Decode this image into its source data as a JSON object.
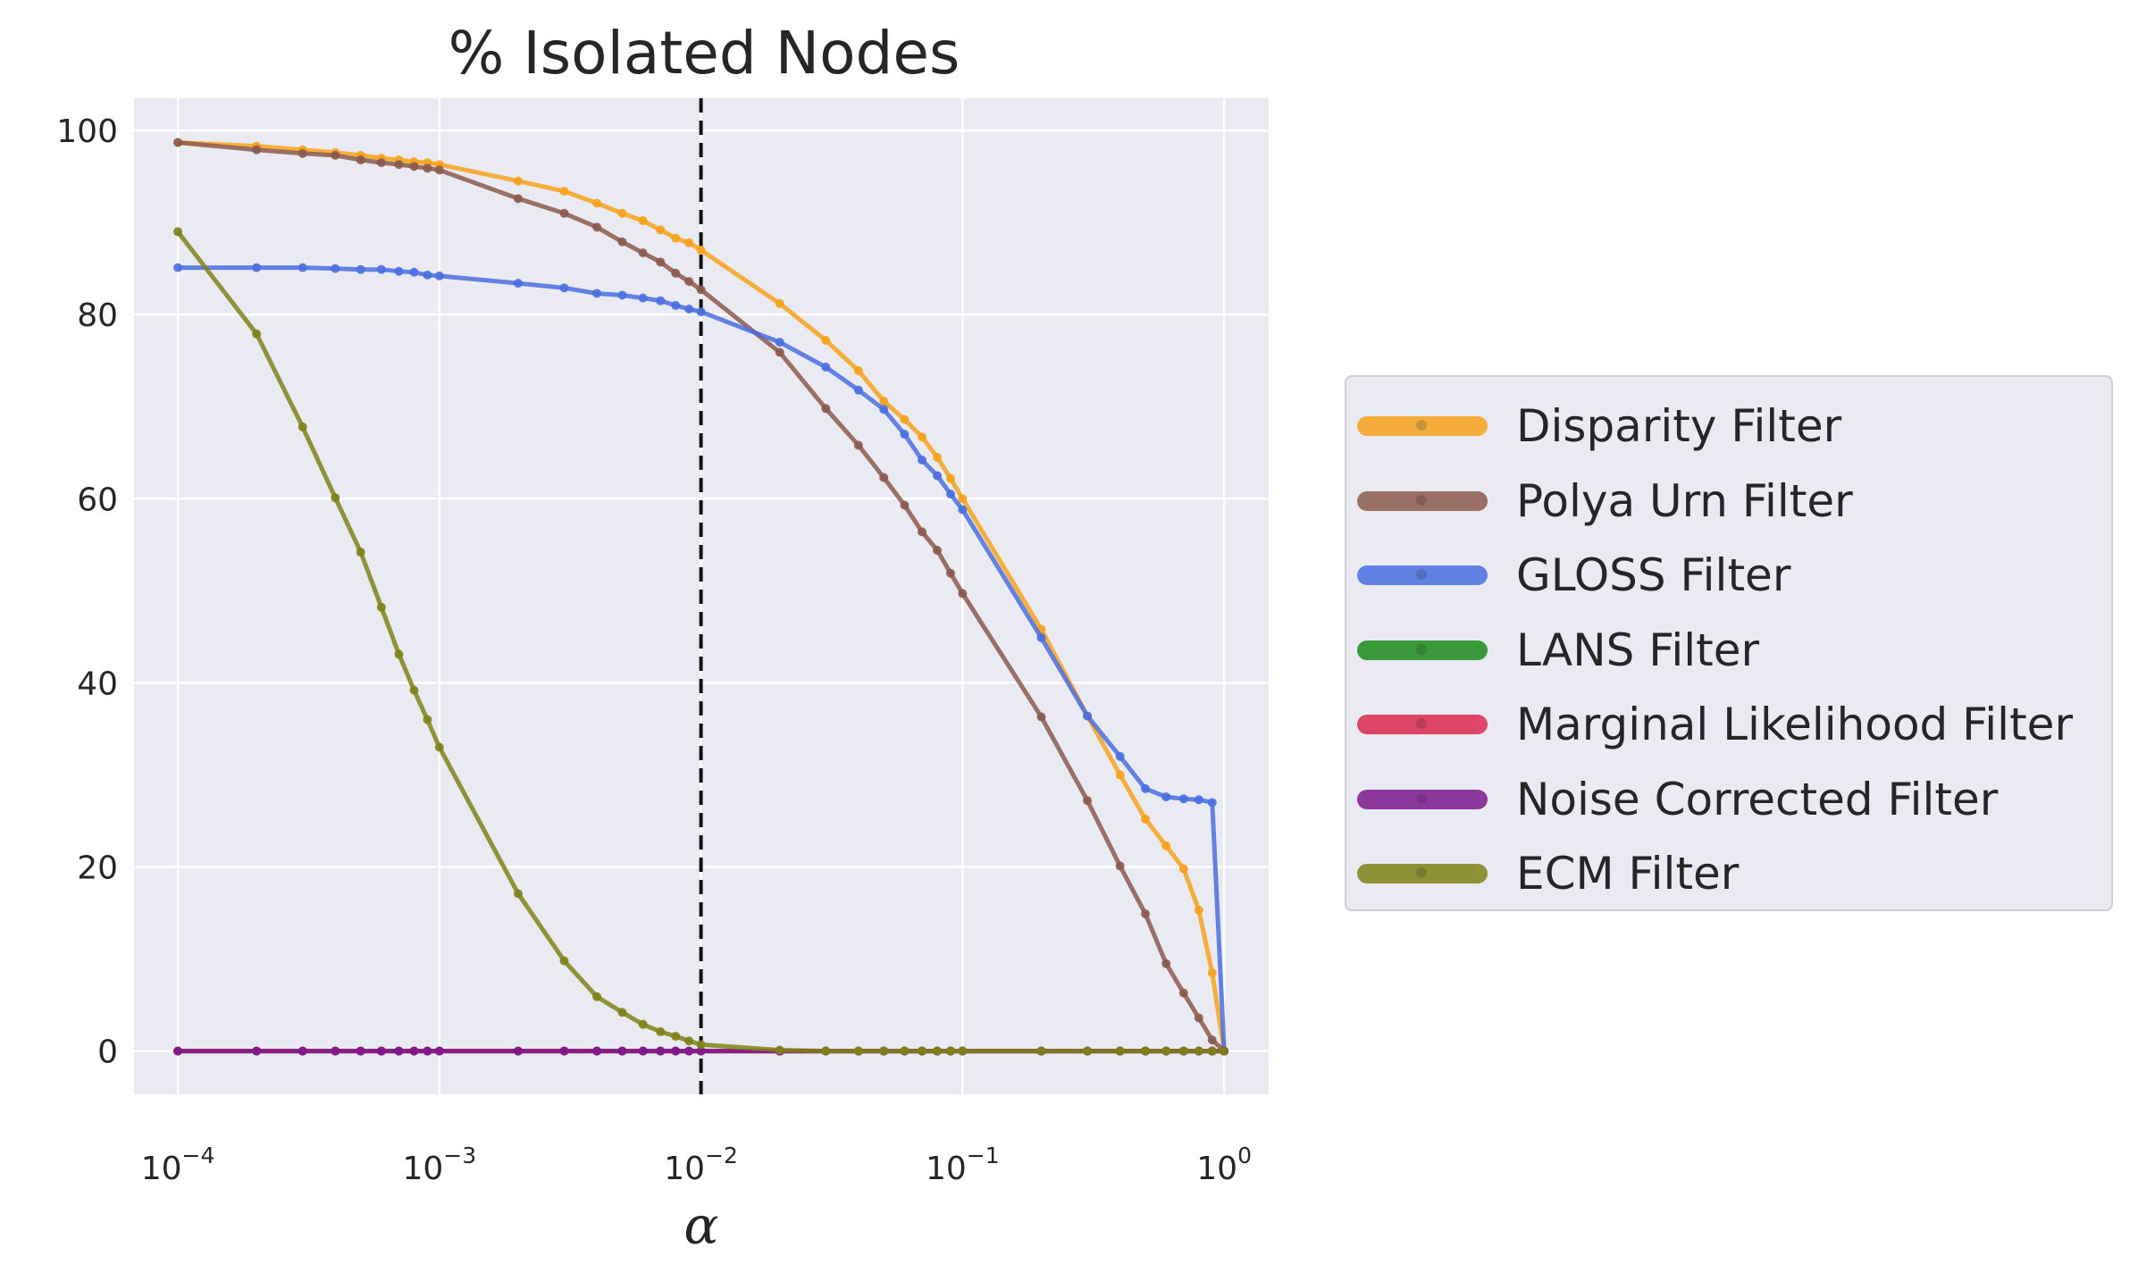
{
  "chart_data": {
    "type": "line",
    "title": "% Isolated Nodes",
    "xlabel": "α",
    "ylabel": "",
    "xscale": "log",
    "xlim": [
      6.8e-05,
      1.48
    ],
    "ylim": [
      -4.7,
      103.5
    ],
    "grid": true,
    "legend_position": "outside right",
    "x_ticks": [
      {
        "base": "10",
        "exp": "−4"
      },
      {
        "base": "10",
        "exp": "−3"
      },
      {
        "base": "10",
        "exp": "−2"
      },
      {
        "base": "10",
        "exp": "−1"
      },
      {
        "base": "10",
        "exp": "0"
      }
    ],
    "y_ticks": [
      "0",
      "20",
      "40",
      "60",
      "80",
      "100"
    ],
    "vline": {
      "x": 0.01,
      "style": "dashed",
      "color": "#111111"
    },
    "x": [
      0.0001,
      0.0002,
      0.0003,
      0.0004,
      0.0005,
      0.0006,
      0.0007,
      0.0008,
      0.0009,
      0.001,
      0.002,
      0.003,
      0.004,
      0.005,
      0.006,
      0.007,
      0.008,
      0.009,
      0.01,
      0.02,
      0.03,
      0.04,
      0.05,
      0.06,
      0.07,
      0.08,
      0.09,
      0.1,
      0.2,
      0.3,
      0.4,
      0.5,
      0.6,
      0.7,
      0.8,
      0.9,
      1.0
    ],
    "series": [
      {
        "name": "Disparity Filter",
        "color": "#f7a21b",
        "values": [
          98.7,
          98.3,
          97.9,
          97.6,
          97.3,
          97.0,
          96.8,
          96.6,
          96.5,
          96.3,
          94.5,
          93.4,
          92.1,
          91.0,
          90.2,
          89.2,
          88.3,
          87.8,
          87.0,
          81.2,
          77.2,
          73.9,
          70.6,
          68.6,
          66.7,
          64.5,
          62.2,
          60.0,
          45.8,
          36.4,
          30.0,
          25.2,
          22.3,
          19.8,
          15.3,
          8.5,
          0.0
        ]
      },
      {
        "name": "Polya Urn Filter",
        "color": "#8c5a4e",
        "values": [
          98.7,
          97.9,
          97.5,
          97.3,
          96.8,
          96.5,
          96.3,
          96.1,
          95.9,
          95.7,
          92.6,
          91.0,
          89.5,
          87.9,
          86.7,
          85.7,
          84.5,
          83.6,
          82.7,
          75.9,
          69.8,
          65.8,
          62.3,
          59.3,
          56.4,
          54.4,
          51.9,
          49.7,
          36.3,
          27.2,
          20.1,
          14.9,
          9.5,
          6.3,
          3.6,
          1.2,
          0.0
        ]
      },
      {
        "name": "GLOSS Filter",
        "color": "#4a6fe0",
        "values": [
          85.1,
          85.1,
          85.1,
          85.0,
          84.9,
          84.9,
          84.7,
          84.6,
          84.3,
          84.2,
          83.4,
          82.9,
          82.3,
          82.1,
          81.8,
          81.5,
          81.0,
          80.6,
          80.3,
          77.0,
          74.3,
          71.8,
          69.7,
          67.0,
          64.2,
          62.5,
          60.5,
          58.8,
          44.9,
          36.4,
          32.0,
          28.5,
          27.6,
          27.4,
          27.3,
          27.0,
          0.0
        ]
      },
      {
        "name": "LANS Filter",
        "color": "#1a8a1a",
        "values": [
          0,
          0,
          0,
          0,
          0,
          0,
          0,
          0,
          0,
          0,
          0,
          0,
          0,
          0,
          0,
          0,
          0,
          0,
          0,
          0,
          0,
          0,
          0,
          0,
          0,
          0,
          0,
          0,
          0,
          0,
          0,
          0,
          0,
          0,
          0,
          0,
          0
        ]
      },
      {
        "name": "Marginal Likelihood Filter",
        "color": "#dc2a50",
        "values": [
          0,
          0,
          0,
          0,
          0,
          0,
          0,
          0,
          0,
          0,
          0,
          0,
          0,
          0,
          0,
          0,
          0,
          0,
          0,
          0,
          0,
          0,
          0,
          0,
          0,
          0,
          0,
          0,
          0,
          0,
          0,
          0,
          0,
          0,
          0,
          0,
          0
        ]
      },
      {
        "name": "Noise Corrected Filter",
        "color": "#7d1a8e",
        "values": [
          0,
          0,
          0,
          0,
          0,
          0,
          0,
          0,
          0,
          0,
          0,
          0,
          0,
          0,
          0,
          0,
          0,
          0,
          0,
          0,
          0,
          0,
          0,
          0,
          0,
          0,
          0,
          0,
          0,
          0,
          0,
          0,
          0,
          0,
          0,
          0,
          0
        ]
      },
      {
        "name": "ECM Filter",
        "color": "#808218",
        "values": [
          89.0,
          77.9,
          67.8,
          60.1,
          54.2,
          48.2,
          43.1,
          39.2,
          36.0,
          33.0,
          17.1,
          9.8,
          5.9,
          4.2,
          2.9,
          2.1,
          1.6,
          1.1,
          0.7,
          0.1,
          0,
          0,
          0,
          0,
          0,
          0,
          0,
          0,
          0,
          0,
          0,
          0,
          0,
          0,
          0,
          0,
          0
        ]
      }
    ]
  }
}
